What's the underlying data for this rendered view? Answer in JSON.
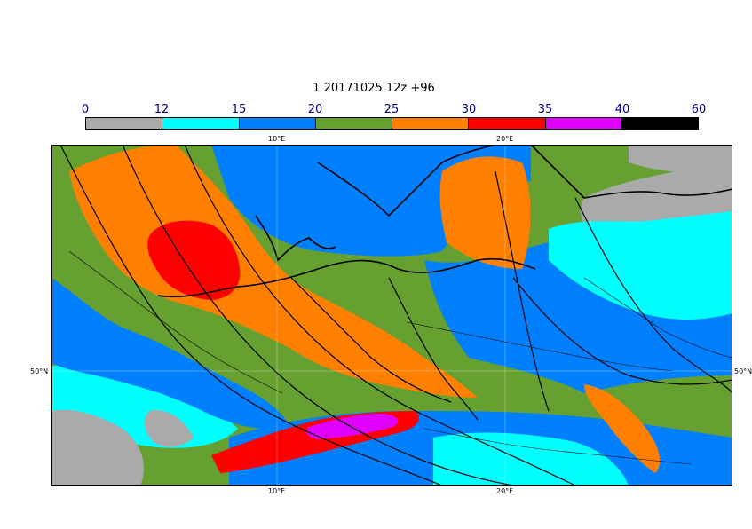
{
  "title": "1 20171025 12z +96",
  "colorbar": {
    "labels": [
      "0",
      "12",
      "15",
      "20",
      "25",
      "30",
      "35",
      "40",
      "60"
    ],
    "colors": [
      "#aaaaaa",
      "#00ffff",
      "#0080ff",
      "#66a030",
      "#ff8000",
      "#ff0000",
      "#e000ff",
      "#000000"
    ]
  },
  "axes": {
    "lon_top": [
      "10°E",
      "20°E"
    ],
    "lon_bottom": [
      "10°E",
      "20°E"
    ],
    "lat_left": "50°N",
    "lat_right": "50°N"
  },
  "map_colors": {
    "gray": "#aaaaaa",
    "cyan": "#00ffff",
    "blue": "#0080ff",
    "green": "#66a030",
    "orange": "#ff8000",
    "red": "#ff0000",
    "magenta": "#e000ff"
  }
}
